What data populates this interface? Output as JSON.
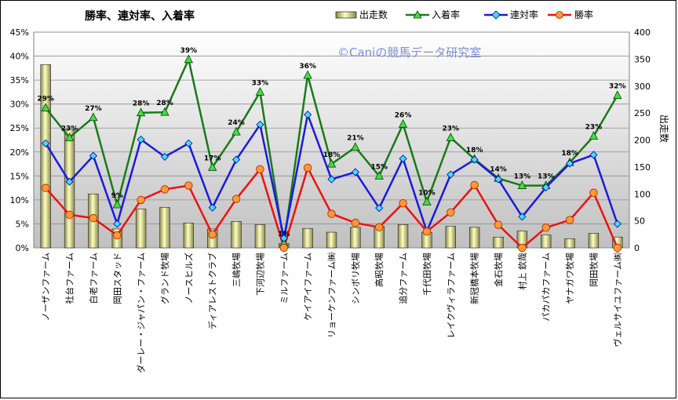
{
  "chart_data": {
    "type": "bar+line",
    "title": "勝率、連対率、入着率",
    "watermark": "©Caniの競馬データ研究室",
    "y2label": "出走数",
    "ylim": [
      0,
      45
    ],
    "y2lim": [
      0,
      400
    ],
    "y_ticks": [
      "0%",
      "5%",
      "10%",
      "15%",
      "20%",
      "25%",
      "30%",
      "35%",
      "40%",
      "45%"
    ],
    "y2_ticks": [
      "0",
      "50",
      "100",
      "150",
      "200",
      "250",
      "300",
      "350",
      "400"
    ],
    "categories": [
      "ノーザンファーム",
      "社台ファーム",
      "白老ファーム",
      "岡田スタッド",
      "ダーレー・ジャパン・ファーム",
      "グランド牧場",
      "ノースヒルズ",
      "ディアレストクラブ",
      "三嶋牧場",
      "下河辺牧場",
      "ミルファーム",
      "ケイアイファーム",
      "リョーケンファーム㈱",
      "シンボリ牧場",
      "高昭牧場",
      "追分ファーム",
      "千代田牧場",
      "レイクヴィラファーム",
      "新冠橋本牧場",
      "金石牧場",
      "村上 欽哉",
      "パカパカファーム",
      "ヤナガワ牧場",
      "岡田牧場",
      "ヴェルサイユファーム㈱"
    ],
    "series": [
      {
        "name": "出走数",
        "kind": "bar",
        "axis": "y2",
        "color": "#f0f0a0",
        "values": [
          340,
          220,
          100,
          35,
          72,
          75,
          46,
          35,
          49,
          43,
          8,
          36,
          29,
          38,
          40,
          43,
          29,
          40,
          38,
          20,
          31,
          24,
          17,
          27,
          20
        ]
      },
      {
        "name": "入着率",
        "kind": "line",
        "axis": "y",
        "color": "#1a7a1a",
        "marker": "triangle",
        "values": [
          29.2,
          23.0,
          27.2,
          9.0,
          28.2,
          28.3,
          39.3,
          16.8,
          24.2,
          32.5,
          1.0,
          36.0,
          17.5,
          21.0,
          15.0,
          25.8,
          9.6,
          23.0,
          18.5,
          14.5,
          13.0,
          13.0,
          17.8,
          23.3,
          31.8
        ]
      },
      {
        "name": "連対率",
        "kind": "line",
        "axis": "y",
        "color": "#1a1ae0",
        "marker": "diamond",
        "values": [
          21.8,
          13.8,
          19.2,
          5.0,
          22.6,
          19.0,
          21.8,
          8.4,
          18.4,
          25.7,
          2.0,
          27.8,
          14.3,
          15.8,
          8.3,
          18.6,
          3.4,
          15.3,
          18.4,
          14.3,
          6.5,
          12.6,
          17.6,
          19.4,
          5.0
        ]
      },
      {
        "name": "勝率",
        "kind": "line",
        "axis": "y",
        "color": "#ee1111",
        "marker": "circle",
        "values": [
          12.5,
          6.9,
          6.2,
          2.6,
          10.0,
          12.2,
          13.0,
          2.8,
          10.2,
          16.4,
          0.0,
          16.7,
          7.1,
          5.2,
          4.3,
          9.3,
          3.4,
          7.4,
          13.1,
          4.8,
          0.0,
          4.2,
          5.8,
          11.5,
          0.0
        ]
      }
    ],
    "data_labels": [
      "29%",
      "23%",
      "27%",
      "9%",
      "28%",
      "28%",
      "39%",
      "17%",
      "24%",
      "33%",
      "1%",
      "36%",
      "18%",
      "21%",
      "15%",
      "26%",
      "10%",
      "23%",
      "18%",
      "14%",
      "13%",
      "13%",
      "18%",
      "23%",
      "32%"
    ],
    "grid": true,
    "legend_position": "top-right"
  }
}
